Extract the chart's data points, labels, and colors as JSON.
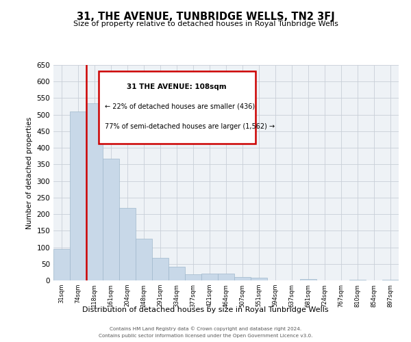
{
  "title": "31, THE AVENUE, TUNBRIDGE WELLS, TN2 3FJ",
  "subtitle": "Size of property relative to detached houses in Royal Tunbridge Wells",
  "xlabel": "Distribution of detached houses by size in Royal Tunbridge Wells",
  "ylabel": "Number of detached properties",
  "bin_labels": [
    "31sqm",
    "74sqm",
    "118sqm",
    "161sqm",
    "204sqm",
    "248sqm",
    "291sqm",
    "334sqm",
    "377sqm",
    "421sqm",
    "464sqm",
    "507sqm",
    "551sqm",
    "594sqm",
    "637sqm",
    "681sqm",
    "724sqm",
    "767sqm",
    "810sqm",
    "854sqm",
    "897sqm"
  ],
  "bar_heights": [
    95,
    510,
    535,
    368,
    218,
    125,
    68,
    42,
    18,
    20,
    20,
    10,
    8,
    0,
    0,
    4,
    0,
    0,
    3,
    0,
    2
  ],
  "bar_color": "#c8d8e8",
  "bar_edgecolor": "#a0b8cc",
  "annotation_line1": "31 THE AVENUE: 108sqm",
  "annotation_line2": "← 22% of detached houses are smaller (436)",
  "annotation_line3": "77% of semi-detached houses are larger (1,562) →",
  "annotation_box_color": "#cc0000",
  "ylim": [
    0,
    650
  ],
  "yticks": [
    0,
    50,
    100,
    150,
    200,
    250,
    300,
    350,
    400,
    450,
    500,
    550,
    600,
    650
  ],
  "background_color": "#eef2f6",
  "grid_color": "#c8cfd8",
  "footer_line1": "Contains HM Land Registry data © Crown copyright and database right 2024.",
  "footer_line2": "Contains public sector information licensed under the Open Government Licence v3.0."
}
